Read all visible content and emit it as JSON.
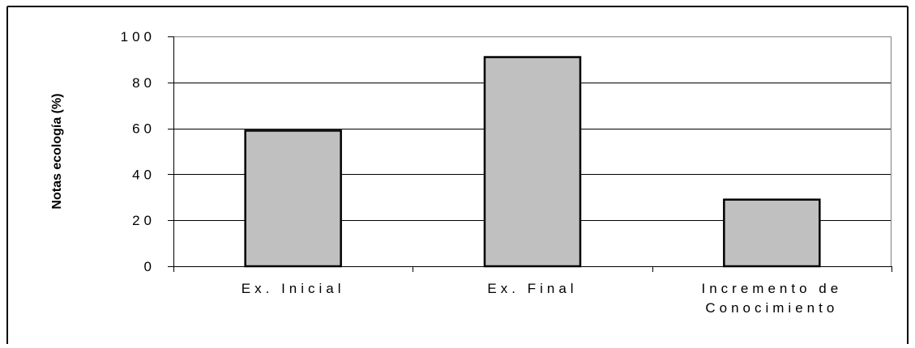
{
  "chart_data": {
    "type": "bar",
    "title": "",
    "xlabel": "",
    "ylabel": "Notas ecología (%)",
    "ylim": [
      0,
      100
    ],
    "yticks": [
      0,
      20,
      40,
      60,
      80,
      100
    ],
    "ytick_labels": [
      "0",
      "20",
      "40",
      "60",
      "80",
      "100"
    ],
    "categories": [
      "Ex. Inicial",
      "Ex. Final",
      "Incremento de Conocimiento"
    ],
    "category_lines": [
      [
        "Ex. Inicial"
      ],
      [
        "Ex. Final"
      ],
      [
        "Incremento de",
        "Conocimiento"
      ]
    ],
    "values": [
      59,
      91,
      29
    ],
    "grid": true,
    "legend": "none",
    "colors": {
      "bar_fill": "#c0c0c0",
      "bar_stroke": "#000000",
      "grid": "#000000",
      "plot_border": "#808080",
      "frame": "#000000"
    }
  }
}
